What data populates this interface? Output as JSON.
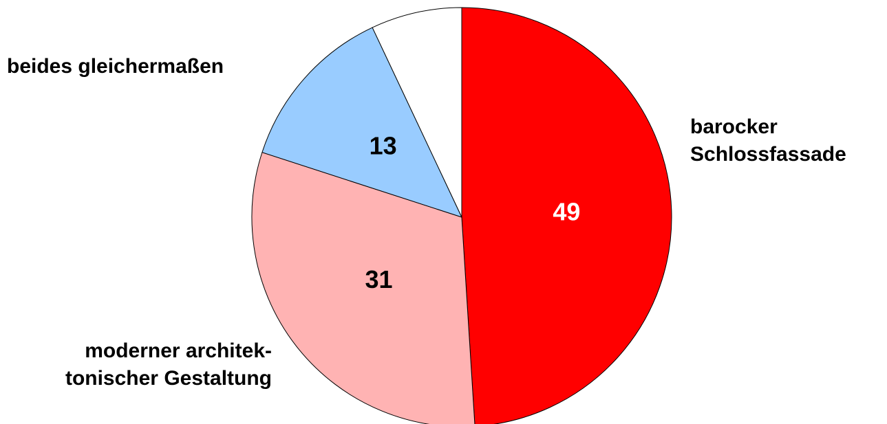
{
  "chart_data": {
    "type": "pie",
    "categories": [
      [
        "barocker",
        "Schlossfassade"
      ],
      [
        "moderner architek-",
        "tonischer Gestaltung"
      ],
      [
        "beides gleichermaßen"
      ],
      null
    ],
    "values": [
      49,
      31,
      13,
      7
    ],
    "colors": [
      "#ff0000",
      "#ffb3b3",
      "#99ccff",
      "#ffffff"
    ],
    "label_colors": [
      "#ffffff",
      "#000000",
      "#000000",
      "#000000"
    ],
    "start_angle": 0,
    "direction": "clockwise"
  }
}
